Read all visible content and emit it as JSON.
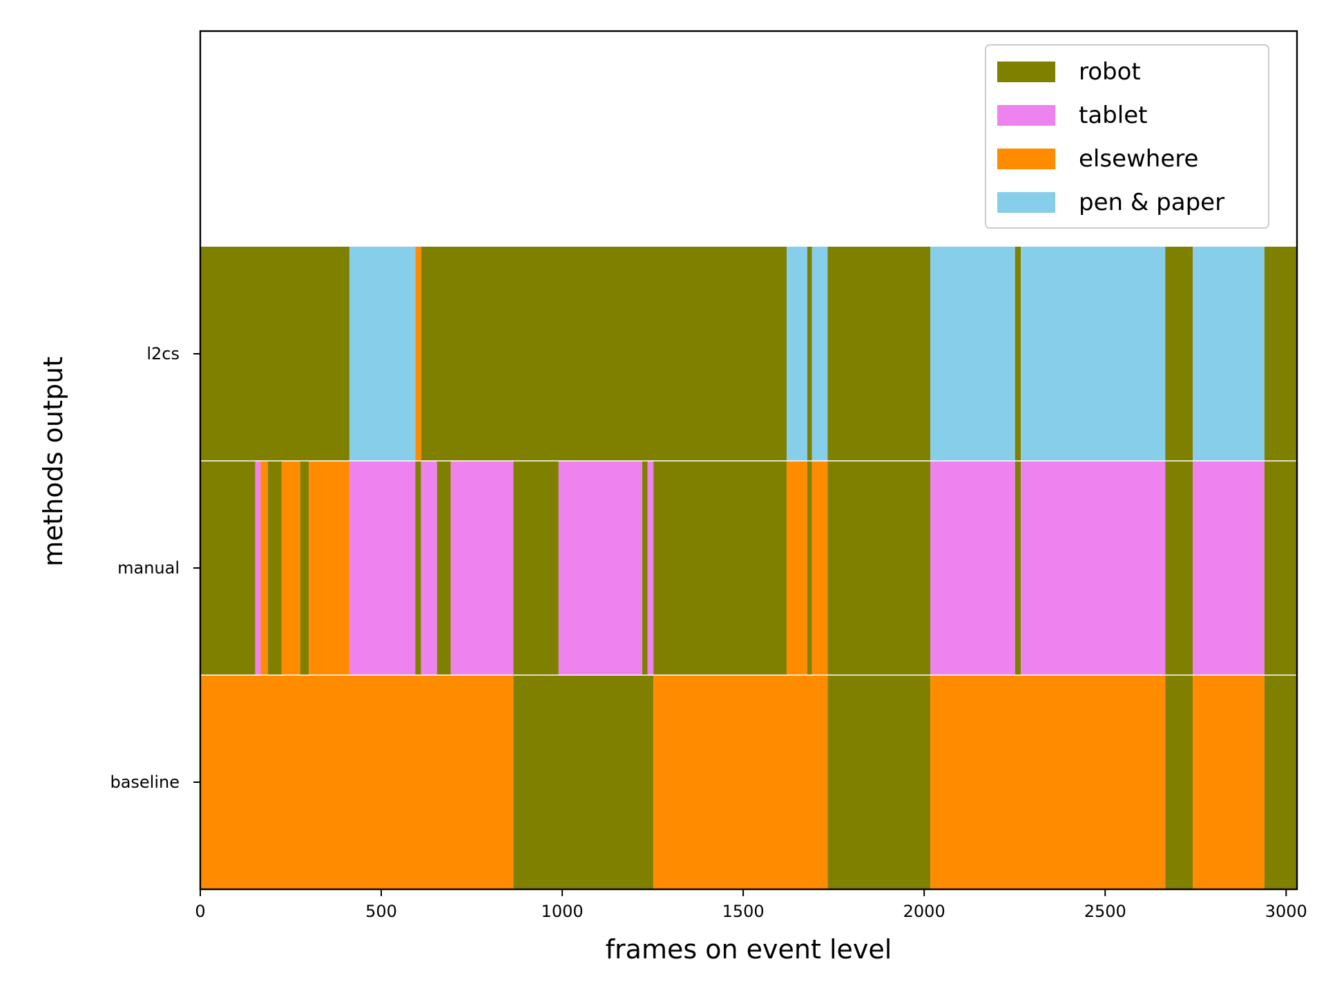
{
  "chart_data": {
    "type": "bar",
    "orientation": "horizontal-segments",
    "xlabel": "frames on event level",
    "ylabel": "methods output",
    "xlim": [
      0,
      3030
    ],
    "xticks": [
      0,
      500,
      1000,
      1500,
      2000,
      2500,
      3000
    ],
    "rows": [
      "baseline",
      "manual",
      "l2cs"
    ],
    "legend": {
      "placement": "top-right",
      "entries": [
        {
          "key": "robot",
          "label": "robot"
        },
        {
          "key": "tablet",
          "label": "tablet"
        },
        {
          "key": "elsewhere",
          "label": "elsewhere"
        },
        {
          "key": "pen",
          "label": "pen & paper"
        }
      ]
    },
    "colors": {
      "robot": "#808000",
      "tablet": "#ee82ee",
      "elsewhere": "#ff8c00",
      "pen": "#87ceeb"
    },
    "series": [
      {
        "row": "baseline",
        "segments": [
          {
            "start": 0,
            "end": 865,
            "category": "elsewhere"
          },
          {
            "start": 865,
            "end": 1252,
            "category": "robot"
          },
          {
            "start": 1252,
            "end": 1733,
            "category": "elsewhere"
          },
          {
            "start": 1733,
            "end": 2017,
            "category": "robot"
          },
          {
            "start": 2017,
            "end": 2666,
            "category": "elsewhere"
          },
          {
            "start": 2666,
            "end": 2742,
            "category": "robot"
          },
          {
            "start": 2742,
            "end": 2940,
            "category": "elsewhere"
          },
          {
            "start": 2940,
            "end": 3030,
            "category": "robot"
          }
        ]
      },
      {
        "row": "manual",
        "segments": [
          {
            "start": 0,
            "end": 152,
            "category": "robot"
          },
          {
            "start": 152,
            "end": 167,
            "category": "tablet"
          },
          {
            "start": 167,
            "end": 187,
            "category": "elsewhere"
          },
          {
            "start": 187,
            "end": 225,
            "category": "robot"
          },
          {
            "start": 225,
            "end": 276,
            "category": "elsewhere"
          },
          {
            "start": 276,
            "end": 300,
            "category": "robot"
          },
          {
            "start": 300,
            "end": 412,
            "category": "elsewhere"
          },
          {
            "start": 412,
            "end": 594,
            "category": "tablet"
          },
          {
            "start": 594,
            "end": 610,
            "category": "robot"
          },
          {
            "start": 610,
            "end": 654,
            "category": "tablet"
          },
          {
            "start": 654,
            "end": 692,
            "category": "robot"
          },
          {
            "start": 692,
            "end": 865,
            "category": "tablet"
          },
          {
            "start": 865,
            "end": 990,
            "category": "robot"
          },
          {
            "start": 990,
            "end": 1221,
            "category": "tablet"
          },
          {
            "start": 1221,
            "end": 1236,
            "category": "robot"
          },
          {
            "start": 1236,
            "end": 1252,
            "category": "tablet"
          },
          {
            "start": 1252,
            "end": 1620,
            "category": "robot"
          },
          {
            "start": 1620,
            "end": 1677,
            "category": "elsewhere"
          },
          {
            "start": 1677,
            "end": 1690,
            "category": "robot"
          },
          {
            "start": 1690,
            "end": 1733,
            "category": "elsewhere"
          },
          {
            "start": 1733,
            "end": 2017,
            "category": "robot"
          },
          {
            "start": 2017,
            "end": 2251,
            "category": "tablet"
          },
          {
            "start": 2251,
            "end": 2267,
            "category": "robot"
          },
          {
            "start": 2267,
            "end": 2666,
            "category": "tablet"
          },
          {
            "start": 2666,
            "end": 2742,
            "category": "robot"
          },
          {
            "start": 2742,
            "end": 2940,
            "category": "tablet"
          },
          {
            "start": 2940,
            "end": 3030,
            "category": "robot"
          }
        ]
      },
      {
        "row": "l2cs",
        "segments": [
          {
            "start": 0,
            "end": 412,
            "category": "robot"
          },
          {
            "start": 412,
            "end": 594,
            "category": "pen"
          },
          {
            "start": 594,
            "end": 610,
            "category": "elsewhere"
          },
          {
            "start": 610,
            "end": 1620,
            "category": "robot"
          },
          {
            "start": 1620,
            "end": 1677,
            "category": "pen"
          },
          {
            "start": 1677,
            "end": 1690,
            "category": "robot"
          },
          {
            "start": 1690,
            "end": 1733,
            "category": "pen"
          },
          {
            "start": 1733,
            "end": 2017,
            "category": "robot"
          },
          {
            "start": 2017,
            "end": 2251,
            "category": "pen"
          },
          {
            "start": 2251,
            "end": 2267,
            "category": "robot"
          },
          {
            "start": 2267,
            "end": 2666,
            "category": "pen"
          },
          {
            "start": 2666,
            "end": 2742,
            "category": "robot"
          },
          {
            "start": 2742,
            "end": 2940,
            "category": "pen"
          },
          {
            "start": 2940,
            "end": 3030,
            "category": "robot"
          }
        ]
      }
    ]
  }
}
